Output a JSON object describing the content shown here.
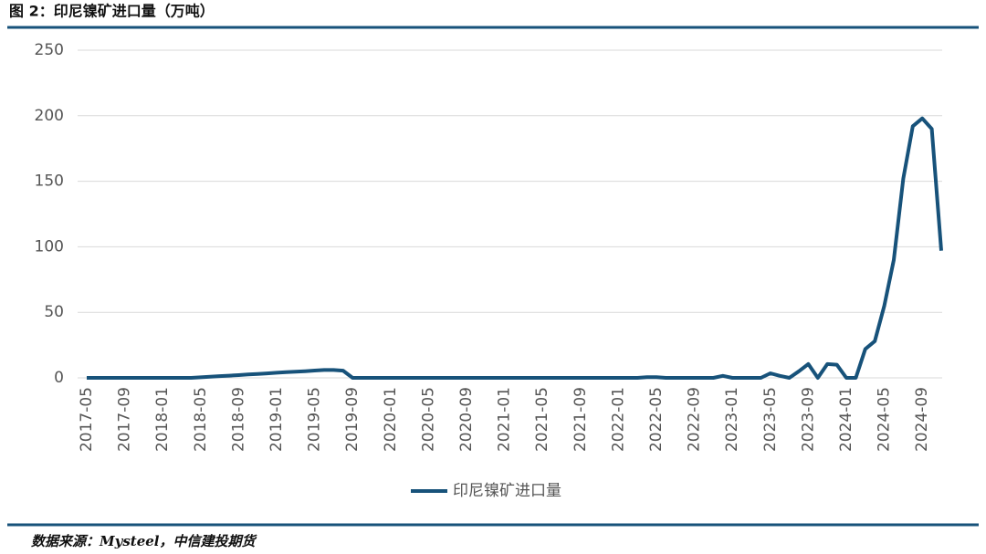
{
  "chart_data": {
    "type": "line",
    "title": "图 2：印尼镍矿进口量（万吨）",
    "source": "数据来源：Mysteel，中信建投期货",
    "categories": [
      "2017-05",
      null,
      null,
      null,
      "2017-09",
      null,
      null,
      null,
      "2018-01",
      null,
      null,
      null,
      "2018-05",
      null,
      null,
      null,
      "2018-09",
      null,
      null,
      null,
      "2019-01",
      null,
      null,
      null,
      "2019-05",
      null,
      null,
      null,
      "2019-09",
      null,
      null,
      null,
      "2020-01",
      null,
      null,
      null,
      "2020-05",
      null,
      null,
      null,
      "2020-09",
      null,
      null,
      null,
      "2021-01",
      null,
      null,
      null,
      "2021-05",
      null,
      null,
      null,
      "2021-09",
      null,
      null,
      null,
      "2022-01",
      null,
      null,
      null,
      "2022-05",
      null,
      null,
      null,
      "2022-09",
      null,
      null,
      null,
      "2023-01",
      null,
      null,
      null,
      "2023-05",
      null,
      null,
      null,
      "2023-09",
      null,
      null,
      null,
      "2024-01",
      null,
      null,
      null,
      "2024-05",
      null,
      null,
      null,
      "2024-09",
      null,
      null
    ],
    "series": [
      {
        "name": "印尼镍矿进口量",
        "color": "#17527a",
        "values": [
          0,
          0,
          0,
          0,
          0,
          0,
          0,
          0,
          0,
          0,
          0,
          0,
          0.4,
          0.9,
          1.3,
          1.7,
          2.1,
          2.6,
          3.0,
          3.4,
          3.9,
          4.3,
          4.7,
          5.1,
          5.6,
          6,
          6,
          5.5,
          0,
          0,
          0,
          0,
          0,
          0,
          0,
          0,
          0,
          0,
          0,
          0,
          0,
          0,
          0,
          0,
          0,
          0,
          0,
          0,
          0,
          0,
          0,
          0,
          0,
          0,
          0,
          0,
          0,
          0,
          0,
          0.5,
          0.5,
          0,
          0,
          0,
          0,
          0,
          0,
          1.5,
          0,
          0,
          0,
          0,
          3.5,
          1.5,
          0,
          5,
          10.5,
          0,
          10.5,
          10,
          0,
          0,
          22,
          28,
          55,
          90,
          152,
          192,
          198,
          190,
          97
        ]
      }
    ],
    "ylim": [
      0,
      250
    ],
    "yticks": [
      0,
      50,
      100,
      150,
      200,
      250
    ],
    "grid": true,
    "legend": "bottom"
  }
}
